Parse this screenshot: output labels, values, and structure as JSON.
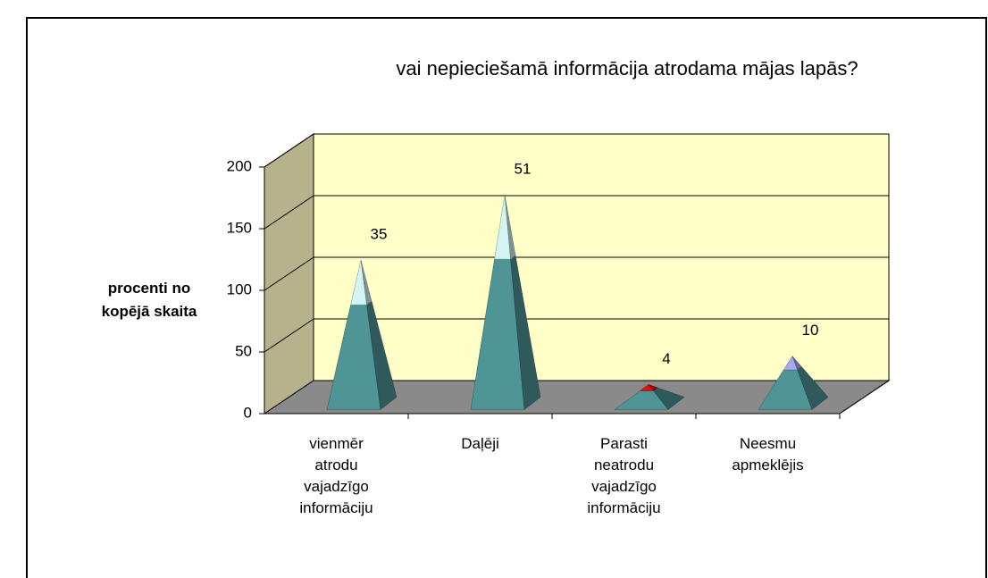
{
  "chart_data": {
    "type": "pyramid",
    "title": "vai nepieciešamā informācija atrodama mājas lapās?",
    "y_label": "procenti no\nkopējā skaita",
    "categories": [
      "vienmēr\natrodu\nvajadzīgo\ninformāciju",
      "Daļēji",
      "Parasti\nneatrodu\nvajadzīgo\ninformāciju",
      "Neesmu\napmeklējis"
    ],
    "series": [
      {
        "color": "#4f9596",
        "values": [
          82,
          119,
          12,
          29
        ]
      },
      {
        "colors": [
          "#d4f4f4",
          "#d4f4f4",
          "#e01010",
          "#a8a8f0"
        ],
        "values": [
          35,
          51,
          4,
          10
        ]
      }
    ],
    "ylim": [
      0,
      200
    ],
    "yticks": [
      0,
      50,
      100,
      150,
      200
    ],
    "grid": true
  }
}
